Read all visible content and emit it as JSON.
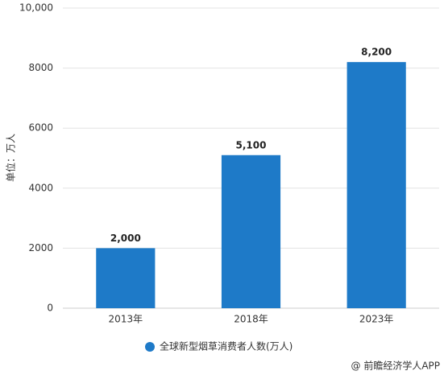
{
  "chart_data": {
    "type": "bar",
    "y_label": "单位：万人",
    "categories": [
      "2013年",
      "2018年",
      "2023年"
    ],
    "series": [
      {
        "name": "全球新型烟草消费者人数(万人)",
        "color": "#1e7ac8",
        "values": [
          2000,
          5100,
          8200
        ],
        "value_labels": [
          "2,000",
          "5,100",
          "8,200"
        ]
      }
    ],
    "ylim": [
      0,
      10000
    ],
    "yticks": [
      0,
      2000,
      4000,
      6000,
      8000,
      {
        "value": 10000,
        "label": "10,000"
      }
    ],
    "grid": true,
    "source": "@ 前瞻经济学人APP"
  }
}
